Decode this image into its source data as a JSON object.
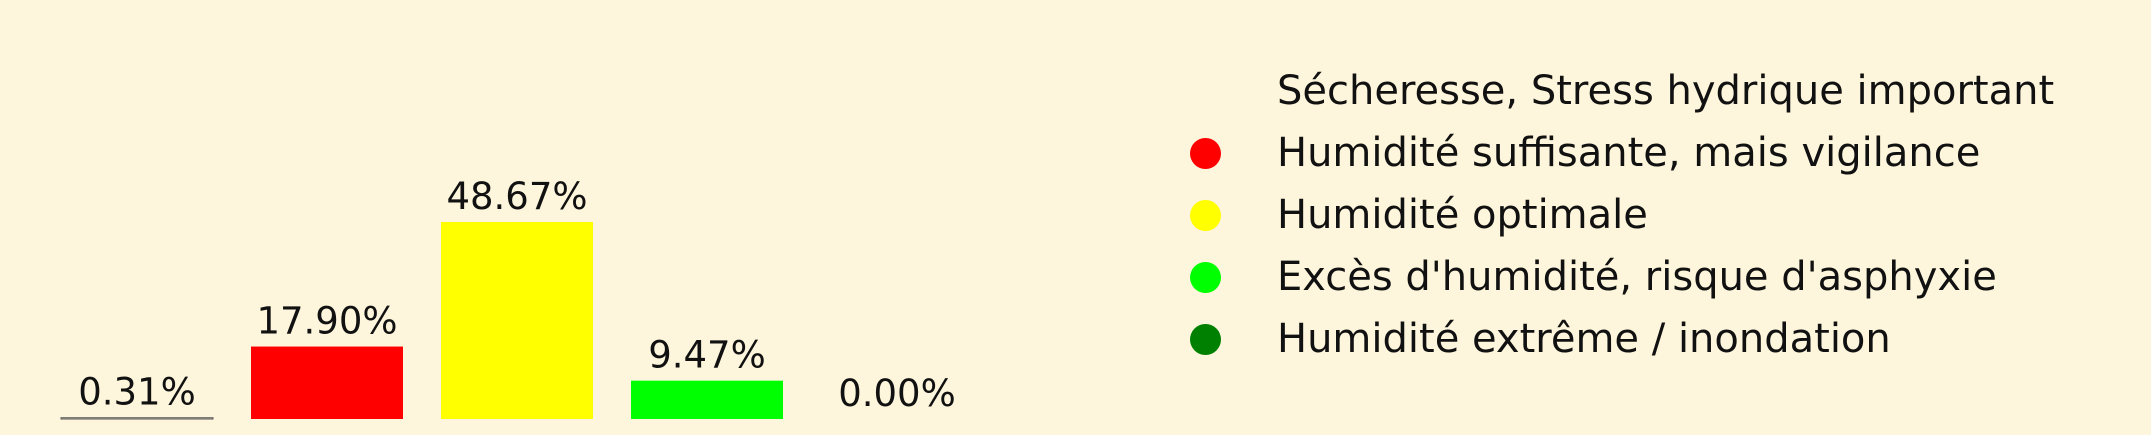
{
  "chart_data": {
    "type": "bar",
    "categories": [
      "Sécheresse, Stress hydrique important",
      "Humidité suffisante, mais vigilance",
      "Humidité optimale",
      "Excès d'humidité, risque d'asphyxie",
      "Humidité extrême / inondation"
    ],
    "values": [
      0.31,
      17.9,
      48.67,
      9.47,
      0.0
    ],
    "value_labels": [
      "0.31%",
      "17.90%",
      "48.67%",
      "9.47%",
      "0.00%"
    ],
    "colors": [
      "#fdf6dc",
      "#ff0000",
      "#ffff00",
      "#00ff00",
      "#008000"
    ],
    "legend": [
      {
        "label": "Sécheresse, Stress hydrique important",
        "color": "#fdf6dc",
        "marker": false
      },
      {
        "label": "Humidité suffisante, mais vigilance",
        "color": "#ff0000",
        "marker": true
      },
      {
        "label": "Humidité optimale",
        "color": "#ffff00",
        "marker": true
      },
      {
        "label": "Excès d'humidité, risque d'asphyxie",
        "color": "#00ff00",
        "marker": true
      },
      {
        "label": "Humidité extrême / inondation",
        "color": "#008000",
        "marker": true
      }
    ],
    "legend_placement": "right",
    "ylim": [
      0,
      100
    ],
    "grid": false,
    "axes_visible": false,
    "baseline_color": "#555555",
    "background": "#fdf6dc"
  }
}
